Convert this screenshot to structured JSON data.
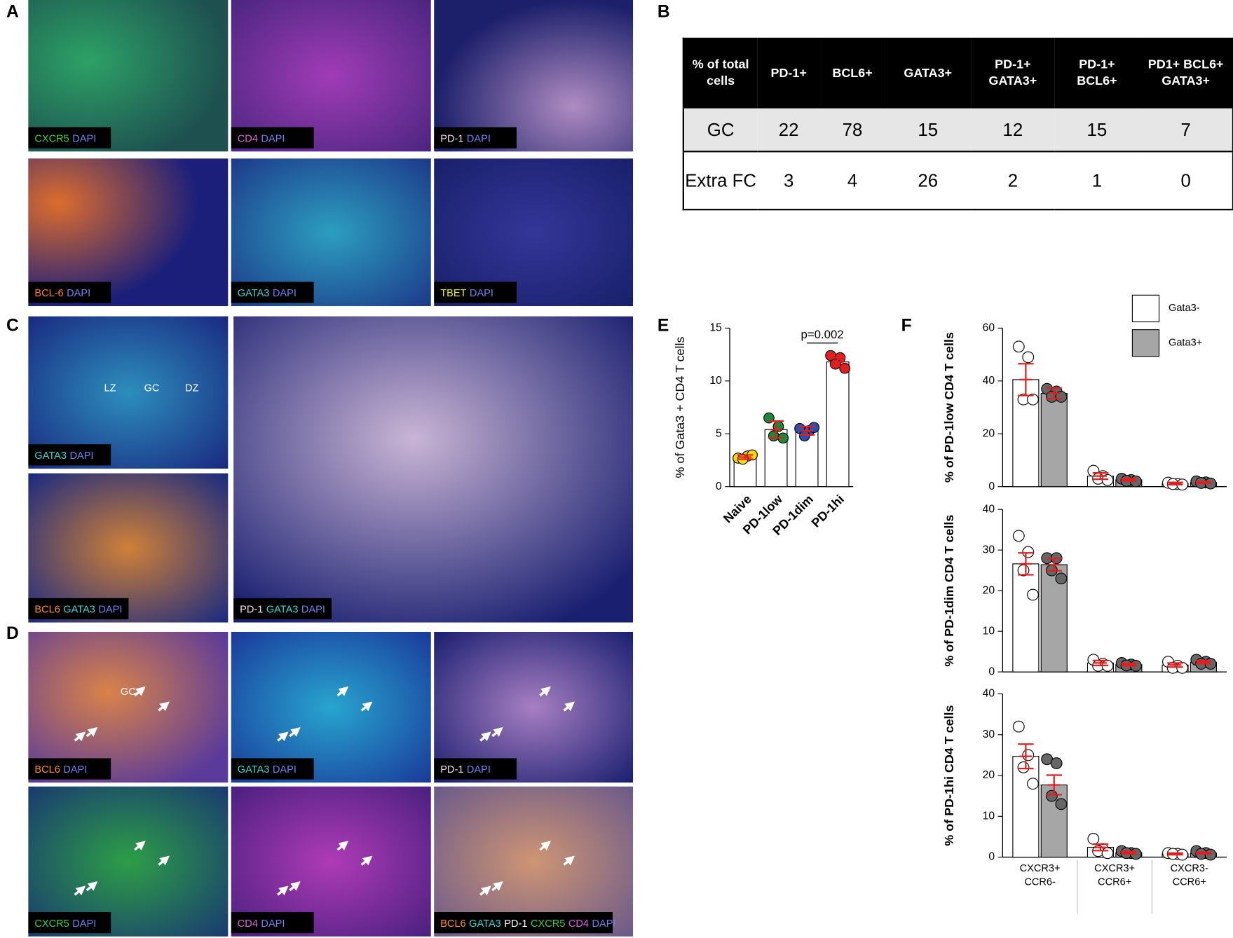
{
  "panel_labels": [
    "A",
    "B",
    "C",
    "D",
    "E",
    "F"
  ],
  "panel_a": {
    "captions": [
      [
        {
          "text": "CXCR5",
          "color": "#3fd13f"
        },
        {
          "text": "DAPI",
          "color": "#7080f0"
        }
      ],
      [
        {
          "text": "CD4",
          "color": "#e060e0"
        },
        {
          "text": "DAPI",
          "color": "#7080f0"
        }
      ],
      [
        {
          "text": "PD-1",
          "color": "#f4d8ee"
        },
        {
          "text": "DAPI",
          "color": "#7080f0"
        }
      ],
      [
        {
          "text": "BCL-6",
          "color": "#ff7f27"
        },
        {
          "text": "DAPI",
          "color": "#7080f0"
        }
      ],
      [
        {
          "text": "GATA3",
          "color": "#3ad6d6"
        },
        {
          "text": "DAPI",
          "color": "#7080f0"
        }
      ],
      [
        {
          "text": "TBET",
          "color": "#ecec2a"
        },
        {
          "text": "DAPI",
          "color": "#7080f0"
        }
      ]
    ]
  },
  "panel_c": {
    "labels": [
      "LZ",
      "GC",
      "DZ"
    ],
    "captions": [
      [
        {
          "text": "GATA3",
          "color": "#3ad6d6"
        },
        {
          "text": "DAPI",
          "color": "#7080f0"
        }
      ],
      [
        {
          "text": "BCL6",
          "color": "#ff8f27"
        },
        {
          "text": "GATA3",
          "color": "#3ad6d6"
        },
        {
          "text": "DAPI",
          "color": "#7080f0"
        }
      ],
      [
        {
          "text": "PD-1",
          "color": "#f4d8ee"
        },
        {
          "text": "GATA3",
          "color": "#3ad6d6"
        },
        {
          "text": "DAPI",
          "color": "#7080f0"
        }
      ]
    ]
  },
  "panel_d": {
    "label": "GC",
    "captions": [
      [
        {
          "text": "BCL6",
          "color": "#ff8f27"
        },
        {
          "text": "DAPI",
          "color": "#7080f0"
        }
      ],
      [
        {
          "text": "GATA3",
          "color": "#3ad6d6"
        },
        {
          "text": "DAPI",
          "color": "#7080f0"
        }
      ],
      [
        {
          "text": "PD-1",
          "color": "#f4d8ee"
        },
        {
          "text": "DAPI",
          "color": "#7080f0"
        }
      ],
      [
        {
          "text": "CXCR5",
          "color": "#3fd13f"
        },
        {
          "text": "DAPI",
          "color": "#7080f0"
        }
      ],
      [
        {
          "text": "CD4",
          "color": "#e060e0"
        },
        {
          "text": "DAPI",
          "color": "#7080f0"
        }
      ],
      [
        {
          "text": "BCL6",
          "color": "#ff8f27"
        },
        {
          "text": "GATA3",
          "color": "#3ad6d6"
        },
        {
          "text": "PD-1",
          "color": "#ffffff"
        },
        {
          "text": "CXCR5",
          "color": "#3fd13f"
        },
        {
          "text": "CD4",
          "color": "#e060e0"
        },
        {
          "text": "DAPI",
          "color": "#7080f0"
        }
      ]
    ]
  },
  "table": {
    "header": [
      "% of total cells",
      "PD-1+",
      "BCL6+",
      "GATA3+",
      "PD-1+ GATA3+",
      "PD-1+ BCL6+",
      "PD1+ BCL6+ GATA3+"
    ],
    "rows": [
      [
        "GC",
        "22",
        "78",
        "15",
        "12",
        "15",
        "7"
      ],
      [
        "Extra FC",
        "3",
        "4",
        "26",
        "2",
        "1",
        "0"
      ]
    ]
  },
  "chart_data": [
    {
      "type": "bar",
      "y_label": "% of Gata3 + CD4 T cells",
      "categories": [
        "Naive",
        "PD-1low",
        "PD-1dim",
        "PD-1hi"
      ],
      "values": [
        2.8,
        5.4,
        5.3,
        11.8
      ],
      "errors": [
        0.2,
        0.8,
        0.4,
        0.4
      ],
      "points": [
        [
          2.7,
          2.9,
          2.6,
          3.0
        ],
        [
          6.5,
          5.7,
          4.8,
          4.6
        ],
        [
          5.5,
          5.3,
          4.8,
          5.6
        ],
        [
          12.4,
          12.2,
          11.6,
          11.2
        ]
      ],
      "color": "#ffffff",
      "error_color": "#e0201e",
      "point_colors": [
        "#f5d90a",
        "#1a8a3a",
        "#2e4fb0",
        "#e0201e"
      ],
      "annotation": "p=0.002",
      "ylim": [
        0,
        15
      ],
      "yticks": [
        0,
        5,
        10,
        15
      ]
    },
    {
      "type": "grouped_bar",
      "categories": [
        [
          "CXCR3+",
          "CCR6-"
        ],
        [
          "CXCR3+",
          "CCR6+"
        ],
        [
          "CXCR3-",
          "CCR6+"
        ]
      ],
      "series": [
        {
          "name": "Gata3-",
          "color": "#ffffff"
        },
        {
          "name": "Gata3+",
          "color": "#a6a6a6"
        }
      ],
      "point_colors": [
        "#ffffff",
        "#666666"
      ],
      "error_color": "#e0201e",
      "legend_position": "upper right",
      "subplots": [
        {
          "y_label": "% of PD-1low CD4 T cells",
          "ylim": [
            0,
            60
          ],
          "yticks": [
            0,
            20,
            40,
            60
          ],
          "values": [
            [
              40.5,
              4.0,
              1.2
            ],
            [
              35.3,
              2.6,
              1.6
            ]
          ],
          "errors": [
            [
              6,
              1.2,
              0.4
            ],
            [
              2,
              0.5,
              0.3
            ]
          ],
          "points": [
            [
              [
                53,
                49,
                33,
                33
              ],
              [
                6,
                4,
                3,
                2.5
              ],
              [
                1.5,
                1,
                1,
                0.8
              ]
            ],
            [
              [
                37,
                36,
                34,
                34
              ],
              [
                3,
                2.5,
                2.2,
                2
              ],
              [
                2,
                1.6,
                1.4,
                1.2
              ]
            ]
          ]
        },
        {
          "y_label": "% of PD-1dim CD4 T cells",
          "ylim": [
            0,
            40
          ],
          "yticks": [
            0,
            10,
            20,
            30,
            40
          ],
          "values": [
            [
              26.6,
              2.2,
              1.7
            ],
            [
              26.4,
              1.8,
              2.4
            ]
          ],
          "errors": [
            [
              2.7,
              0.6,
              0.5
            ],
            [
              1.5,
              0.3,
              0.4
            ]
          ],
          "points": [
            [
              [
                33.5,
                29.5,
                25,
                19
              ],
              [
                3,
                2,
                1.5,
                1.5
              ],
              [
                2.5,
                1.5,
                1,
                1
              ]
            ],
            [
              [
                28,
                28,
                25,
                23
              ],
              [
                2.2,
                1.8,
                1.6,
                1.5
              ],
              [
                3,
                2.5,
                2,
                2
              ]
            ]
          ]
        },
        {
          "y_label": "% of PD-1hi CD4 T cells",
          "ylim": [
            0,
            40
          ],
          "yticks": [
            0,
            10,
            20,
            30,
            40
          ],
          "values": [
            [
              24.7,
              2.4,
              0.8
            ],
            [
              17.7,
              1.1,
              1.0
            ]
          ],
          "errors": [
            [
              3,
              0.8,
              0.2
            ],
            [
              2.4,
              0.3,
              0.2
            ]
          ],
          "points": [
            [
              [
                32,
                25,
                22,
                18
              ],
              [
                4.5,
                2,
                1.5,
                1
              ],
              [
                1,
                0.8,
                0.8,
                0.6
              ]
            ],
            [
              [
                24,
                23,
                15,
                13
              ],
              [
                1.5,
                1,
                1,
                0.8
              ],
              [
                1.5,
                1,
                0.8,
                0.6
              ]
            ]
          ]
        }
      ]
    }
  ]
}
